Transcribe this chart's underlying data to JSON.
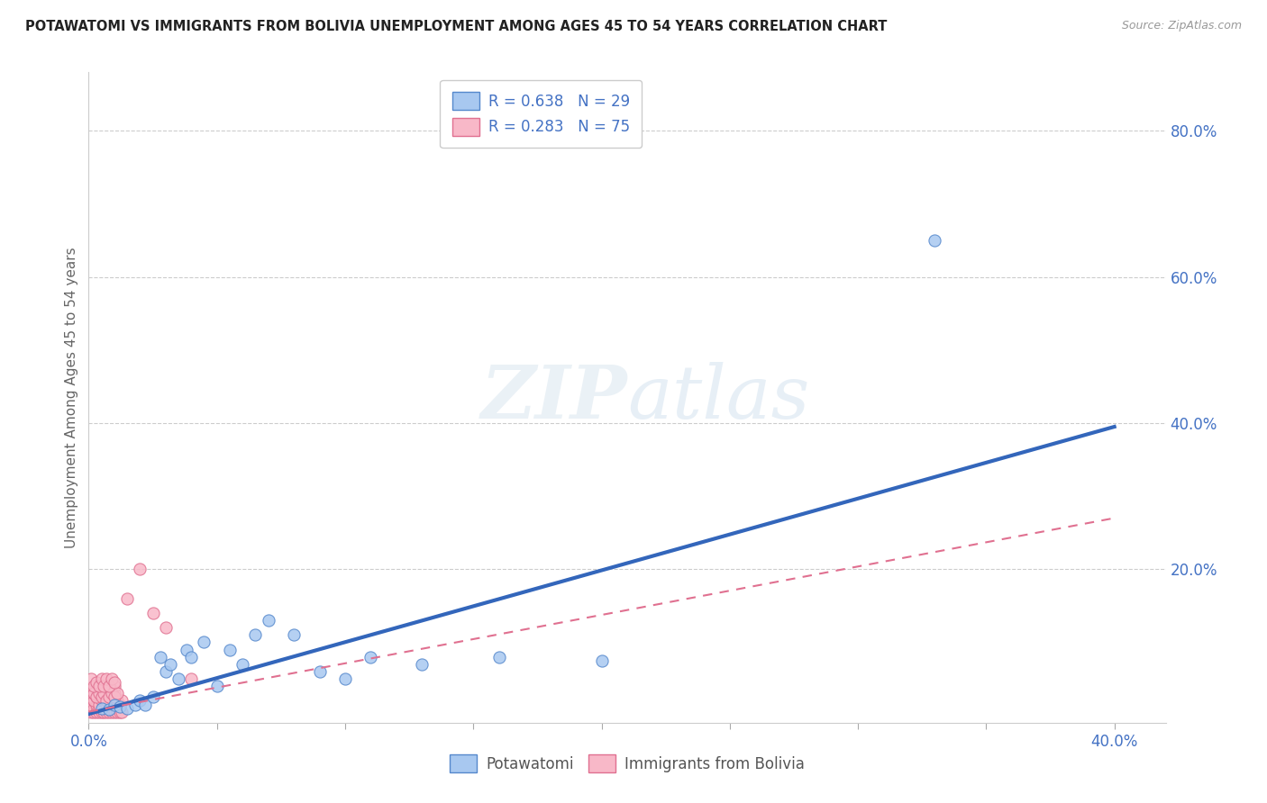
{
  "title": "POTAWATOMI VS IMMIGRANTS FROM BOLIVIA UNEMPLOYMENT AMONG AGES 45 TO 54 YEARS CORRELATION CHART",
  "source": "Source: ZipAtlas.com",
  "ylabel": "Unemployment Among Ages 45 to 54 years",
  "xlim": [
    0.0,
    0.42
  ],
  "ylim": [
    -0.01,
    0.88
  ],
  "ytick_positions": [
    0.0,
    0.2,
    0.4,
    0.6,
    0.8
  ],
  "ytick_labels": [
    "",
    "20.0%",
    "40.0%",
    "60.0%",
    "80.0%"
  ],
  "color_blue_fill": "#a8c8f0",
  "color_blue_edge": "#5588cc",
  "color_pink_fill": "#f8b8c8",
  "color_pink_edge": "#e07090",
  "color_text_blue": "#4472c4",
  "color_trend_blue": "#3366bb",
  "color_trend_pink": "#e07090",
  "blue_scatter_x": [
    0.005,
    0.008,
    0.01,
    0.012,
    0.015,
    0.018,
    0.02,
    0.022,
    0.025,
    0.028,
    0.03,
    0.032,
    0.035,
    0.038,
    0.04,
    0.045,
    0.05,
    0.055,
    0.06,
    0.065,
    0.07,
    0.08,
    0.09,
    0.1,
    0.11,
    0.13,
    0.16,
    0.2,
    0.33
  ],
  "blue_scatter_y": [
    0.01,
    0.008,
    0.015,
    0.012,
    0.01,
    0.015,
    0.02,
    0.015,
    0.025,
    0.08,
    0.06,
    0.07,
    0.05,
    0.09,
    0.08,
    0.1,
    0.04,
    0.09,
    0.07,
    0.11,
    0.13,
    0.11,
    0.06,
    0.05,
    0.08,
    0.07,
    0.08,
    0.075,
    0.65
  ],
  "pink_scatter_x": [
    0.001,
    0.001,
    0.001,
    0.002,
    0.002,
    0.002,
    0.003,
    0.003,
    0.003,
    0.004,
    0.004,
    0.005,
    0.005,
    0.005,
    0.006,
    0.006,
    0.007,
    0.007,
    0.008,
    0.008,
    0.009,
    0.009,
    0.01,
    0.01,
    0.011,
    0.011,
    0.012,
    0.012,
    0.013,
    0.013,
    0.001,
    0.002,
    0.003,
    0.004,
    0.005,
    0.006,
    0.007,
    0.008,
    0.009,
    0.01,
    0.001,
    0.002,
    0.003,
    0.004,
    0.005,
    0.006,
    0.007,
    0.008,
    0.009,
    0.01,
    0.002,
    0.003,
    0.004,
    0.005,
    0.006,
    0.007,
    0.008,
    0.009,
    0.01,
    0.011,
    0.001,
    0.002,
    0.003,
    0.004,
    0.005,
    0.006,
    0.007,
    0.008,
    0.009,
    0.01,
    0.015,
    0.02,
    0.025,
    0.03,
    0.04
  ],
  "pink_scatter_y": [
    0.005,
    0.01,
    0.015,
    0.005,
    0.01,
    0.02,
    0.005,
    0.015,
    0.025,
    0.005,
    0.01,
    0.005,
    0.015,
    0.025,
    0.005,
    0.01,
    0.005,
    0.02,
    0.005,
    0.015,
    0.005,
    0.02,
    0.005,
    0.015,
    0.005,
    0.02,
    0.005,
    0.015,
    0.005,
    0.02,
    0.025,
    0.02,
    0.025,
    0.015,
    0.02,
    0.025,
    0.015,
    0.025,
    0.02,
    0.03,
    0.035,
    0.03,
    0.04,
    0.035,
    0.03,
    0.035,
    0.04,
    0.03,
    0.035,
    0.04,
    0.03,
    0.025,
    0.03,
    0.025,
    0.03,
    0.02,
    0.025,
    0.03,
    0.025,
    0.03,
    0.05,
    0.04,
    0.045,
    0.04,
    0.05,
    0.04,
    0.05,
    0.04,
    0.05,
    0.045,
    0.16,
    0.2,
    0.14,
    0.12,
    0.05
  ],
  "blue_trend_x": [
    0.0,
    0.4
  ],
  "blue_trend_y": [
    0.002,
    0.395
  ],
  "pink_trend_x": [
    0.0,
    0.4
  ],
  "pink_trend_y": [
    0.005,
    0.27
  ],
  "legend_text_1": "R = 0.638   N = 29",
  "legend_text_2": "R = 0.283   N = 75",
  "bottom_legend_label1": "Potawatomi",
  "bottom_legend_label2": "Immigrants from Bolivia"
}
